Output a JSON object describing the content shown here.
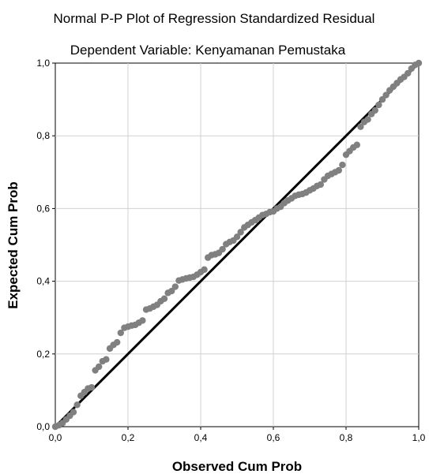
{
  "chart_data": {
    "type": "scatter",
    "title": "Normal P-P Plot of Regression Standardized Residual",
    "subtitle": "Dependent Variable: Kenyamanan Pemustaka",
    "xlabel": "Observed Cum Prob",
    "ylabel": "Expected Cum Prob",
    "xlim": [
      0.0,
      1.0
    ],
    "ylim": [
      0.0,
      1.0
    ],
    "xticks": [
      "0,0",
      "0,2",
      "0,4",
      "0,6",
      "0,8",
      "1,0"
    ],
    "yticks": [
      "0,0",
      "0,2",
      "0,4",
      "0,6",
      "0,8",
      "1,0"
    ],
    "grid": true,
    "reference_line": [
      [
        0,
        0
      ],
      [
        1,
        1
      ]
    ],
    "point_color": "#808080",
    "line_color": "#000000",
    "points": [
      [
        0.0,
        0.0
      ],
      [
        0.01,
        0.004
      ],
      [
        0.02,
        0.01
      ],
      [
        0.03,
        0.02
      ],
      [
        0.04,
        0.03
      ],
      [
        0.05,
        0.04
      ],
      [
        0.06,
        0.06
      ],
      [
        0.07,
        0.085
      ],
      [
        0.08,
        0.095
      ],
      [
        0.09,
        0.105
      ],
      [
        0.1,
        0.108
      ],
      [
        0.11,
        0.155
      ],
      [
        0.12,
        0.165
      ],
      [
        0.13,
        0.18
      ],
      [
        0.14,
        0.185
      ],
      [
        0.15,
        0.215
      ],
      [
        0.16,
        0.225
      ],
      [
        0.17,
        0.232
      ],
      [
        0.18,
        0.258
      ],
      [
        0.19,
        0.272
      ],
      [
        0.2,
        0.275
      ],
      [
        0.21,
        0.278
      ],
      [
        0.22,
        0.28
      ],
      [
        0.23,
        0.286
      ],
      [
        0.24,
        0.292
      ],
      [
        0.25,
        0.322
      ],
      [
        0.26,
        0.325
      ],
      [
        0.27,
        0.33
      ],
      [
        0.28,
        0.335
      ],
      [
        0.29,
        0.345
      ],
      [
        0.3,
        0.352
      ],
      [
        0.31,
        0.368
      ],
      [
        0.32,
        0.373
      ],
      [
        0.33,
        0.385
      ],
      [
        0.34,
        0.402
      ],
      [
        0.35,
        0.405
      ],
      [
        0.36,
        0.408
      ],
      [
        0.37,
        0.41
      ],
      [
        0.38,
        0.412
      ],
      [
        0.39,
        0.418
      ],
      [
        0.4,
        0.425
      ],
      [
        0.41,
        0.432
      ],
      [
        0.42,
        0.465
      ],
      [
        0.43,
        0.472
      ],
      [
        0.44,
        0.474
      ],
      [
        0.45,
        0.478
      ],
      [
        0.46,
        0.488
      ],
      [
        0.47,
        0.502
      ],
      [
        0.48,
        0.508
      ],
      [
        0.49,
        0.512
      ],
      [
        0.5,
        0.522
      ],
      [
        0.51,
        0.535
      ],
      [
        0.52,
        0.548
      ],
      [
        0.53,
        0.555
      ],
      [
        0.54,
        0.562
      ],
      [
        0.55,
        0.568
      ],
      [
        0.56,
        0.575
      ],
      [
        0.57,
        0.582
      ],
      [
        0.58,
        0.585
      ],
      [
        0.59,
        0.59
      ],
      [
        0.6,
        0.592
      ],
      [
        0.61,
        0.6
      ],
      [
        0.62,
        0.605
      ],
      [
        0.63,
        0.615
      ],
      [
        0.64,
        0.622
      ],
      [
        0.65,
        0.628
      ],
      [
        0.66,
        0.635
      ],
      [
        0.67,
        0.638
      ],
      [
        0.68,
        0.64
      ],
      [
        0.69,
        0.644
      ],
      [
        0.7,
        0.65
      ],
      [
        0.71,
        0.655
      ],
      [
        0.72,
        0.662
      ],
      [
        0.73,
        0.666
      ],
      [
        0.74,
        0.68
      ],
      [
        0.75,
        0.69
      ],
      [
        0.76,
        0.695
      ],
      [
        0.77,
        0.7
      ],
      [
        0.78,
        0.705
      ],
      [
        0.79,
        0.72
      ],
      [
        0.8,
        0.748
      ],
      [
        0.81,
        0.758
      ],
      [
        0.82,
        0.768
      ],
      [
        0.83,
        0.775
      ],
      [
        0.84,
        0.825
      ],
      [
        0.85,
        0.838
      ],
      [
        0.86,
        0.845
      ],
      [
        0.87,
        0.86
      ],
      [
        0.88,
        0.87
      ],
      [
        0.89,
        0.885
      ],
      [
        0.9,
        0.9
      ],
      [
        0.91,
        0.912
      ],
      [
        0.92,
        0.925
      ],
      [
        0.93,
        0.935
      ],
      [
        0.94,
        0.945
      ],
      [
        0.95,
        0.955
      ],
      [
        0.96,
        0.962
      ],
      [
        0.97,
        0.972
      ],
      [
        0.98,
        0.985
      ],
      [
        0.99,
        0.995
      ],
      [
        1.0,
        1.0
      ]
    ]
  }
}
